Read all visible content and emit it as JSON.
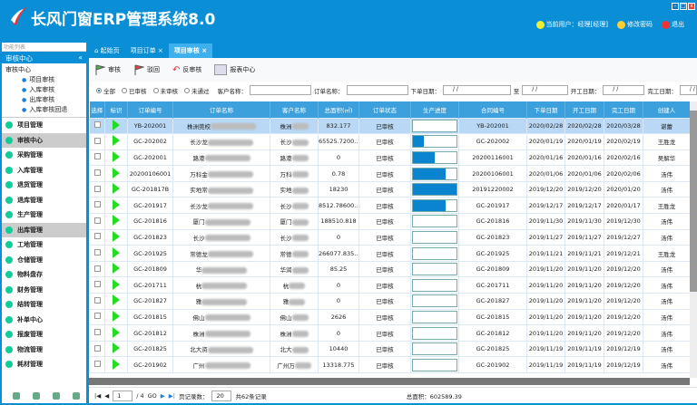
{
  "app": {
    "title": "长风门窗ERP管理系统8.0",
    "user": "当前用户：经理[经理]",
    "change_pwd": "修改密码",
    "logout": "退出"
  },
  "sidebar": {
    "list_label": "功能列表",
    "section": "审核中心",
    "tree": {
      "root": "审核中心",
      "items": [
        "项目审核",
        "入库审核",
        "出库审核",
        "入库审核回退"
      ]
    },
    "menus": [
      "项目管理",
      "审核中心",
      "采购管理",
      "入库管理",
      "退货管理",
      "退库管理",
      "生产管理",
      "出库管理",
      "工地管理",
      "仓储管理",
      "物料盘存",
      "财务管理",
      "结转管理",
      "补单中心",
      "报废管理",
      "物流管理",
      "耗材管理"
    ],
    "selected": [
      "审核中心",
      "出库管理"
    ]
  },
  "tabs": [
    {
      "label": "起始页"
    },
    {
      "label": "项目订单"
    },
    {
      "label": "项目审核",
      "active": true
    }
  ],
  "toolbar": {
    "approve": "审核",
    "reject": "驳回",
    "unapprove": "反审核",
    "report": "报表中心"
  },
  "filter": {
    "radios": [
      "全部",
      "已审核",
      "未审核",
      "未通过"
    ],
    "selected": "全部",
    "customer_label": "客户名称：",
    "order_label": "订单名称：",
    "order_date_label": "下单日期：",
    "to_label": "至",
    "start_label": "开工日期：",
    "finish_label": "完工日期：",
    "date_placeholder": "/  /"
  },
  "grid": {
    "columns": [
      "选择",
      "标识",
      "订单编号",
      "订单名称",
      "客户名称",
      "总面积(㎡)",
      "订单状态",
      "生产进度",
      "合同编号",
      "下单日期",
      "开工日期",
      "完工日期",
      "创建人"
    ],
    "rows": [
      [
        "YB-202001",
        "株洲莞校",
        "株洲",
        "832.177",
        "已审核",
        0,
        "YB-202001",
        "2020/02/28",
        "2020/02/28",
        "2020/03/28",
        "谌蕾"
      ],
      [
        "GC-202002",
        "长沙龙",
        "长沙",
        "65525.7200...",
        "已审核",
        0.25,
        "GC-202002",
        "2020/01/19",
        "2020/01/19",
        "2020/02/19",
        "王胜龙"
      ],
      [
        "GC-202001",
        "路港",
        "路港",
        "0",
        "已审核",
        0.5,
        "20200116001",
        "2020/01/16",
        "2020/01/16",
        "2020/02/16",
        "吴解华"
      ],
      [
        "20200106001",
        "万科金",
        "万科",
        "0.78",
        "已审核",
        0.75,
        "20200106001",
        "2020/01/06",
        "2020/01/06",
        "2020/02/06",
        "汤伟"
      ],
      [
        "GC-201817B",
        "实地常",
        "实地",
        "18230",
        "已审核",
        1.0,
        "20191220002",
        "2019/12/20",
        "2019/12/20",
        "2020/01/20",
        "汤伟"
      ],
      [
        "GC-201917",
        "长沙龙",
        "长沙",
        "8512.78600...",
        "已审核",
        0.75,
        "GC-201917",
        "2019/12/17",
        "2019/12/17",
        "2020/01/17",
        "王胜龙"
      ],
      [
        "GC-201816",
        "厦门",
        "厦门",
        "188510.818",
        "已审核",
        0,
        "GC-201816",
        "2019/11/30",
        "2019/11/30",
        "2019/12/30",
        "汤伟"
      ],
      [
        "GC-201823",
        "长沙",
        "长沙",
        "0",
        "已审核",
        0,
        "GC-201823",
        "2019/11/27",
        "2019/11/27",
        "2019/12/27",
        "汤伟"
      ],
      [
        "GC-201925",
        "常德龙",
        "常德",
        "266077.835...",
        "已审核",
        0,
        "GC-201925",
        "2019/11/21",
        "2019/11/21",
        "2019/12/21",
        "王胜龙"
      ],
      [
        "GC-201809",
        "华",
        "华润",
        "85.25",
        "已审核",
        0,
        "GC-201809",
        "2019/11/20",
        "2019/11/20",
        "2019/12/20",
        "汤伟"
      ],
      [
        "GC-201711",
        "杭",
        "杭",
        "0",
        "已审核",
        0,
        "GC-201711",
        "2019/11/20",
        "2019/11/20",
        "2019/12/20",
        "汤伟"
      ],
      [
        "GC-201827",
        "雅",
        "雅",
        "0",
        "已审核",
        0,
        "GC-201827",
        "2019/11/20",
        "2019/11/20",
        "2019/12/20",
        "汤伟"
      ],
      [
        "GC-201815",
        "佛山",
        "佛山",
        "2626",
        "已审核",
        0,
        "GC-201815",
        "2019/11/20",
        "2019/11/20",
        "2019/12/20",
        "汤伟"
      ],
      [
        "GC-201812",
        "株洲",
        "株洲",
        "0",
        "已审核",
        0,
        "GC-201812",
        "2019/11/20",
        "2019/11/20",
        "2019/12/20",
        "汤伟"
      ],
      [
        "GC-201825",
        "北大资",
        "北大",
        "10440",
        "已审核",
        0,
        "GC-201825",
        "2019/11/19",
        "2019/11/19",
        "2019/12/19",
        "汤伟"
      ],
      [
        "GC-201902",
        "广州",
        "广州万",
        "13318.775",
        "已审核",
        0,
        "GC-201902",
        "2019/11/19",
        "2019/11/19",
        "2019/12/19",
        "汤伟"
      ]
    ]
  },
  "pager": {
    "page": "1",
    "of": "/ 4",
    "page_size_label": "页记录数：",
    "page_size": "20",
    "total": "共62条记录",
    "total_area": "总面积：602589.39"
  },
  "colors": {
    "brand": "#0a8fd6",
    "header": "#3ca0dc",
    "progress": "#0a84cf",
    "flag": "#2d2"
  }
}
